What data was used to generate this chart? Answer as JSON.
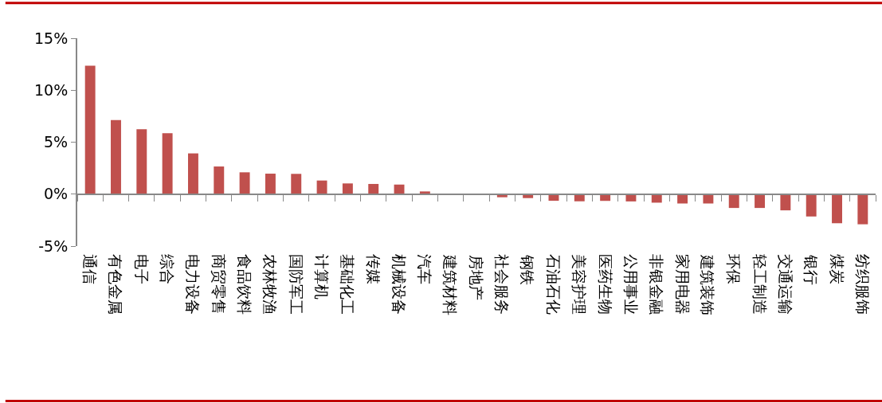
{
  "chart_data": {
    "type": "bar",
    "categories": [
      "通信",
      "有色金属",
      "电子",
      "综合",
      "电力设备",
      "商贸零售",
      "食品饮料",
      "农林牧渔",
      "国防军工",
      "计算机",
      "基础化工",
      "传媒",
      "机械设备",
      "汽车",
      "建筑材料",
      "房地产",
      "社会服务",
      "钢铁",
      "石油石化",
      "美容护理",
      "医药生物",
      "公用事业",
      "非银金融",
      "家用电器",
      "建筑装饰",
      "环保",
      "轻工制造",
      "交通运输",
      "银行",
      "煤炭",
      "纺织服饰"
    ],
    "values": [
      12.35,
      7.12,
      6.25,
      5.87,
      3.92,
      2.66,
      2.1,
      1.97,
      1.95,
      1.31,
      1.03,
      0.98,
      0.92,
      0.26,
      0.05,
      0.0,
      -0.3,
      -0.38,
      -0.64,
      -0.69,
      -0.65,
      -0.7,
      -0.82,
      -0.9,
      -0.9,
      -1.33,
      -1.33,
      -1.56,
      -2.15,
      -2.8,
      -2.9
    ],
    "color": "#c0504d",
    "ylim": [
      -5,
      15
    ],
    "yticks": [
      {
        "value": -5,
        "label": "-5%"
      },
      {
        "value": 0,
        "label": "0%"
      },
      {
        "value": 5,
        "label": "5%"
      },
      {
        "value": 10,
        "label": "10%"
      },
      {
        "value": 15,
        "label": "15%"
      }
    ]
  }
}
